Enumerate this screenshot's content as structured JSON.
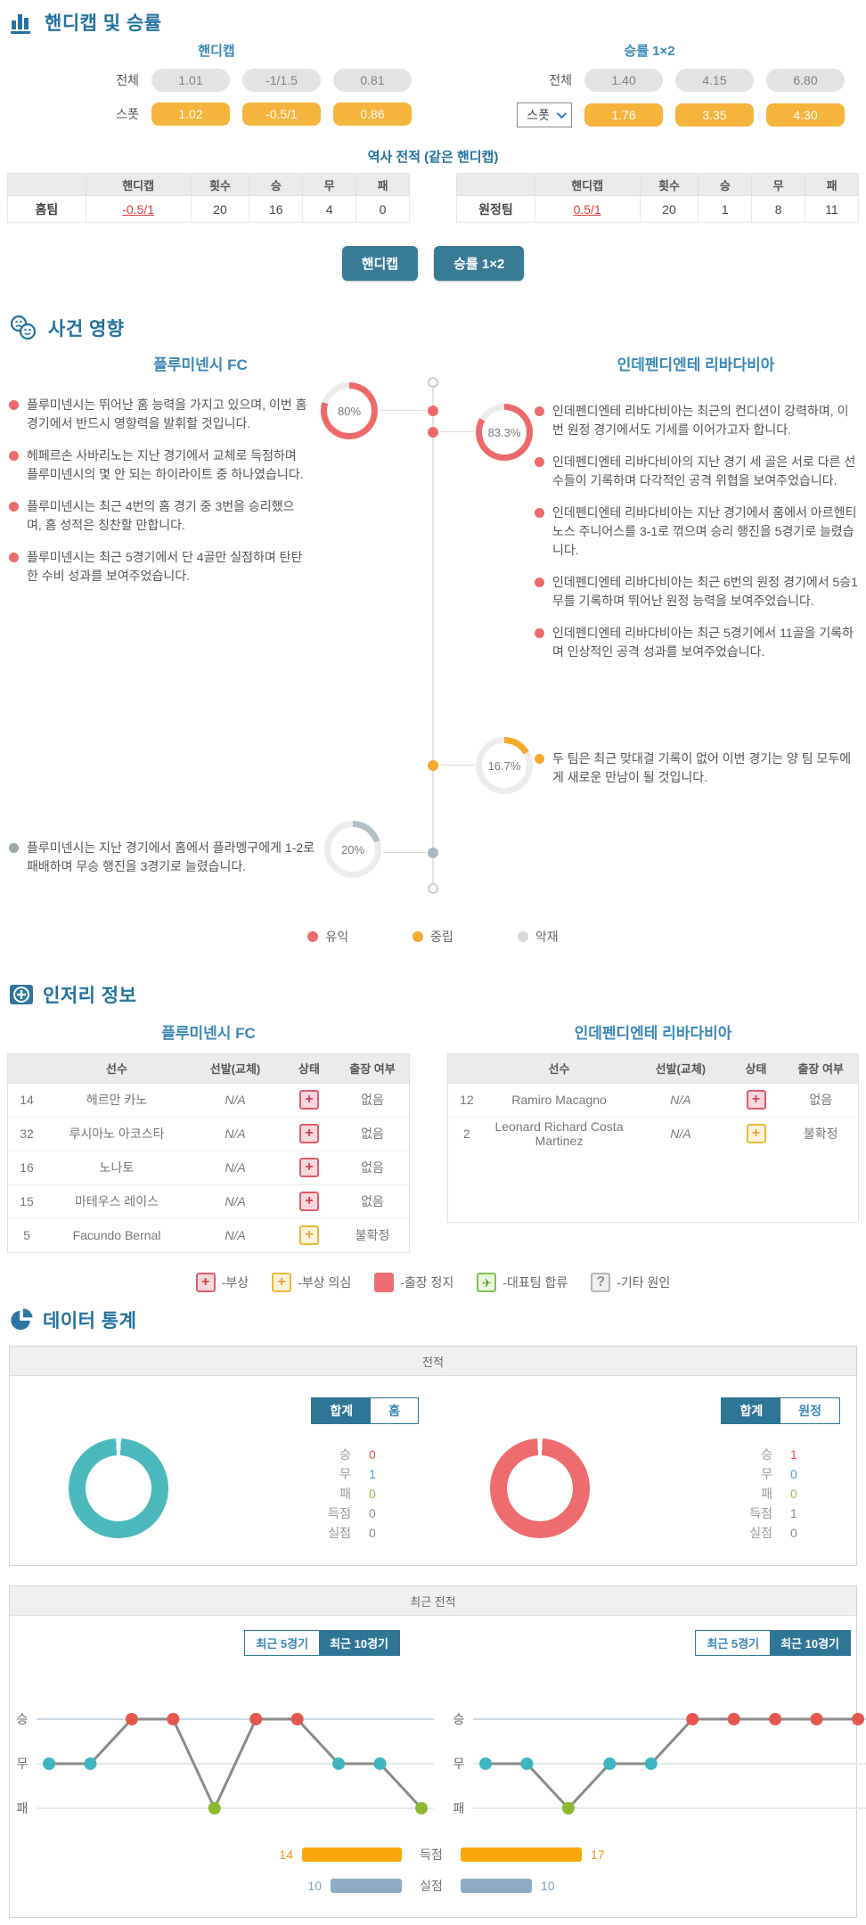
{
  "colors": {
    "accent_blue": "#2272a0",
    "team_blue": "#3a87b7",
    "teal_button": "#377b96",
    "orange_pill": "#f5b43c",
    "good": "#ee6a6a",
    "neutral": "#f3ab2e",
    "bad": "#d5d9dc"
  },
  "section_odds": {
    "title": "핸디캡 및 승률",
    "handicap": {
      "title": "핸디캡",
      "all_label": "전체",
      "spot_label": "스폿",
      "all_values": [
        "1.01",
        "-1/1.5",
        "0.81"
      ],
      "spot_values": [
        "1.02",
        "-0.5/1",
        "0.86"
      ]
    },
    "winrate": {
      "title": "승률 1×2",
      "all_label": "전체",
      "spot_label": "스폿",
      "all_values": [
        "1.40",
        "4.15",
        "6.80"
      ],
      "spot_values": [
        "1.76",
        "3.35",
        "4.30"
      ]
    },
    "history_title": "역사 전적 (같은 핸디캡)",
    "columns": {
      "handicap": "핸디캡",
      "count": "횟수",
      "win": "승",
      "draw": "무",
      "loss": "패"
    },
    "home_row": {
      "team": "홈팀",
      "handicap": "-0.5/1",
      "count": "20",
      "win": "16",
      "draw": "4",
      "loss": "0"
    },
    "away_row": {
      "team": "원정팀",
      "handicap": "0.5/1",
      "count": "20",
      "win": "1",
      "draw": "8",
      "loss": "11"
    },
    "btn_handicap": "핸디캡",
    "btn_winrate": "승률 1×2"
  },
  "section_events": {
    "title": "사건 영향",
    "home_team": "플루미넨시 FC",
    "away_team": "인데펜디엔테 리바다비아",
    "home_bullets": [
      "플루미넨시는 뛰어난 홈 능력을 가지고 있으며, 이번 홈 경기에서 반드시 영향력을 발휘할 것입니다.",
      "헤페르손 사바리노는 지난 경기에서 교체로 득점하며 플루미넨시의 몇 안 되는 하이라이트 중 하나였습니다.",
      "플루미넨시는 최근 4번의 홈 경기 중 3번을 승리했으며, 홈 성적은 칭찬할 만합니다.",
      "플루미넨시는 최근 5경기에서 단 4골만 실점하며 탄탄한 수비 성과를 보여주었습니다."
    ],
    "home_bad_bullet": "플루미넨시는 지난 경기에서 홈에서 플라멩구에게 1-2로 패배하며 무승 행진을 3경기로 늘렸습니다.",
    "away_bullets": [
      "인데펜디엔테 리바다비아는 최근의 컨디션이 강력하며, 이번 원정 경기에서도 기세를 이어가고자 합니다.",
      "인데펜디엔테 리바다비아의 지난 경기 세 골은 서로 다른 선수들이 기록하며 다각적인 공격 위협을 보여주었습니다.",
      "인데펜디엔테 리바다비아는 지난 경기에서 홈에서 아르헨티노스 주니어스를 3-1로 꺾으며 승리 행진을 5경기로 늘렸습니다.",
      "인데펜디엔테 리바다비아는 최근 6번의 원정 경기에서 5승1무를 기록하며 뛰어난 원정 능력을 보여주었습니다.",
      "인데펜디엔테 리바다비아는 최근 5경기에서 11골을 기록하며 인상적인 공격 성과를 보여주었습니다."
    ],
    "neutral_bullet": "두 팀은 최근 맞대결 기록이 없어 이번 경기는 양 팀 모두에게 새로운 만남이 될 것입니다.",
    "gauges": {
      "home_good": "80%",
      "away_good": "83.3%",
      "neutral": "16.7%",
      "home_bad": "20%"
    },
    "legend": [
      {
        "label": "유익",
        "color": "#ee6a6a"
      },
      {
        "label": "중립",
        "color": "#f3ab2e"
      },
      {
        "label": "악재",
        "color": "#d5d9dc"
      }
    ]
  },
  "section_injury": {
    "title": "인저리 정보",
    "home_team": "플루미넨시 FC",
    "away_team": "인데펜디엔테 리바다비아",
    "columns": {
      "player": "선수",
      "start": "선발(교체)",
      "status": "상태",
      "play": "출장 여부"
    },
    "home_rows": [
      {
        "number": "14",
        "name": "헤르만 카노",
        "start": "N/A",
        "status": "injury",
        "play": "없음"
      },
      {
        "number": "32",
        "name": "루시아노 아코스타",
        "start": "N/A",
        "status": "injury",
        "play": "없음"
      },
      {
        "number": "16",
        "name": "노나토",
        "start": "N/A",
        "status": "injury",
        "play": "없음"
      },
      {
        "number": "15",
        "name": "마테우스 레이스",
        "start": "N/A",
        "status": "injury",
        "play": "없음"
      },
      {
        "number": "5",
        "name": "Facundo Bernal",
        "start": "N/A",
        "status": "doubt",
        "play": "불확정"
      }
    ],
    "away_rows": [
      {
        "number": "12",
        "name": "Ramiro Macagno",
        "start": "N/A",
        "status": "injury",
        "play": "없음"
      },
      {
        "number": "2",
        "name": "Leonard Richard Costa Martinez",
        "start": "N/A",
        "status": "doubt",
        "play": "불확정"
      }
    ],
    "legend": [
      {
        "icon": "injury",
        "label": "-부상"
      },
      {
        "icon": "doubt",
        "label": "-부상 의심"
      },
      {
        "icon": "suspended",
        "label": "-출장 정지"
      },
      {
        "icon": "national",
        "label": "-대표팀 합류"
      },
      {
        "icon": "other",
        "label": "-기타 원인"
      }
    ]
  },
  "section_stats": {
    "title": "데이터 통계",
    "record": {
      "panel_title": "전적",
      "left": {
        "tab_total": "합계",
        "tab_side": "홈",
        "rows": [
          {
            "label": "승",
            "value": 0
          },
          {
            "label": "무",
            "value": 1
          },
          {
            "label": "패",
            "value": 0
          },
          {
            "label": "득점",
            "value": 0
          },
          {
            "label": "실점",
            "value": 0
          }
        ]
      },
      "right": {
        "tab_total": "합계",
        "tab_side": "원정",
        "rows": [
          {
            "label": "승",
            "value": 1
          },
          {
            "label": "무",
            "value": 0
          },
          {
            "label": "패",
            "value": 0
          },
          {
            "label": "득점",
            "value": 1
          },
          {
            "label": "실점",
            "value": 0
          }
        ]
      }
    },
    "recent": {
      "panel_title": "최근 전적",
      "tab5": "최근 5경기",
      "tab10": "최근 10경기",
      "y_labels": [
        "승",
        "무",
        "패"
      ],
      "score_label": "득점",
      "concede_label": "실점"
    }
  },
  "chart_data": [
    {
      "type": "pie",
      "title": "전적(합계) 플루미넨시 FC",
      "labels": [
        "승",
        "무",
        "패"
      ],
      "values": [
        0,
        1,
        0
      ],
      "display_color": "#4bb8be"
    },
    {
      "type": "pie",
      "title": "전적(합계) 인데펜디엔테 리바다비아",
      "labels": [
        "승",
        "무",
        "패"
      ],
      "values": [
        1,
        0,
        0
      ],
      "display_color": "#ee6b6e"
    },
    {
      "type": "line",
      "title": "최근 10경기 플루미넨시 FC",
      "y_categories": [
        "승",
        "무",
        "패"
      ],
      "values": [
        "무",
        "무",
        "승",
        "승",
        "패",
        "승",
        "승",
        "무",
        "무",
        "패"
      ]
    },
    {
      "type": "line",
      "title": "최근 10경기 인데펜디엔테 리바다비아",
      "y_categories": [
        "승",
        "무",
        "패"
      ],
      "values": [
        "무",
        "무",
        "패",
        "무",
        "무",
        "승",
        "승",
        "승",
        "승",
        "승"
      ]
    },
    {
      "type": "bar",
      "categories": [
        "득점",
        "실점"
      ],
      "series": [
        {
          "name": "플루미넨시 FC",
          "values": [
            14,
            10
          ]
        },
        {
          "name": "인데펜디엔테 리바다비아",
          "values": [
            17,
            10
          ]
        }
      ],
      "colors": [
        "#f7a70a",
        "#8badc5"
      ]
    }
  ]
}
